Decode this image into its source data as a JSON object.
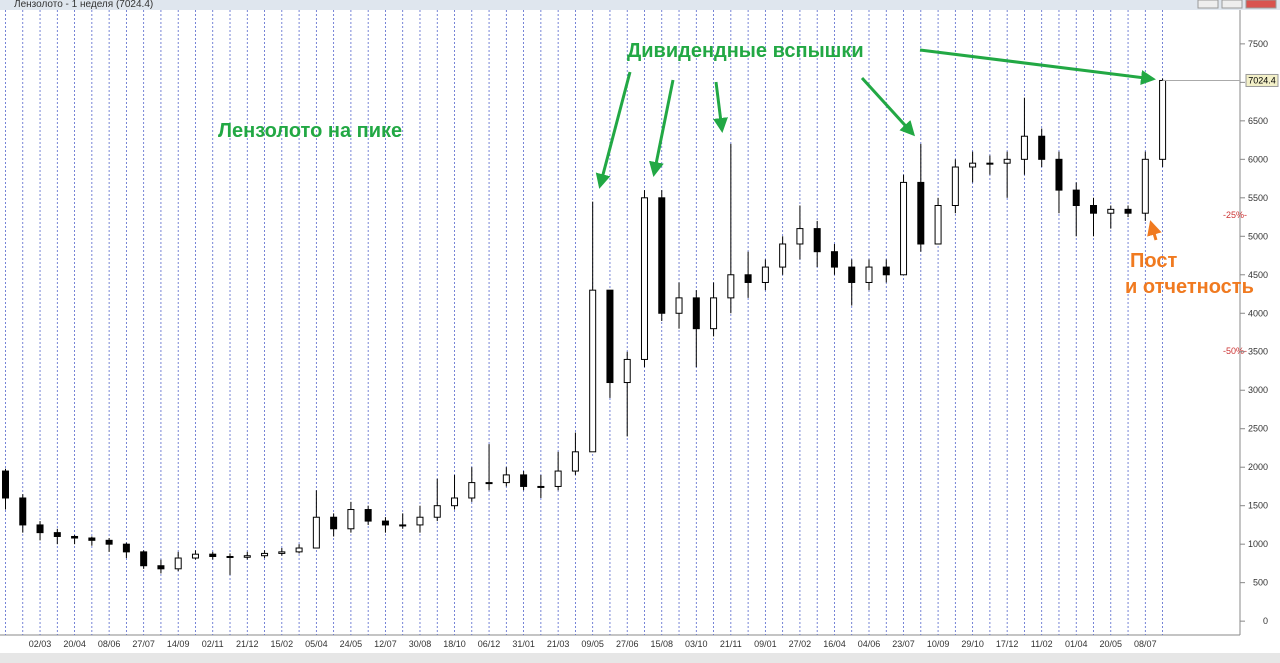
{
  "window_title": "Лензолото - 1 неделя (7024.4)",
  "chart_data": {
    "type": "candlestick",
    "categories": [
      null,
      null,
      "02/03",
      null,
      "20/04",
      null,
      "08/06",
      null,
      "27/07",
      null,
      "14/09",
      null,
      "02/11",
      null,
      "21/12",
      null,
      "15/02",
      null,
      "05/04",
      null,
      "24/05",
      null,
      "12/07",
      null,
      "30/08",
      null,
      "18/10",
      null,
      "06/12",
      null,
      "31/01",
      null,
      "21/03",
      null,
      "09/05",
      null,
      "27/06",
      null,
      "15/08",
      null,
      "03/10",
      null,
      "21/11",
      null,
      "09/01",
      null,
      "27/02",
      null,
      "16/04",
      null,
      "04/06",
      null,
      "23/07",
      null,
      "10/09",
      null,
      "29/10",
      null,
      "17/12",
      null,
      "11/02",
      null,
      "01/04",
      null,
      "20/05",
      null,
      "08/07",
      null
    ],
    "open": [
      1950,
      1600,
      1250,
      1150,
      1100,
      1080,
      1050,
      1000,
      900,
      720,
      680,
      820,
      870,
      840,
      830,
      850,
      880,
      900,
      950,
      1350,
      1200,
      1450,
      1300,
      1250,
      1250,
      1350,
      1500,
      1600,
      1800,
      1800,
      1900,
      1750,
      1750,
      1950,
      2200,
      4300,
      3100,
      3400,
      5500,
      4000,
      4200,
      3800,
      4200,
      4500,
      4400,
      4600,
      4900,
      5100,
      4800,
      4600,
      4400,
      4600,
      4500,
      5700,
      4900,
      5400,
      5900,
      5950,
      5950,
      6000,
      6300,
      6000,
      5600,
      5400,
      5300,
      5350,
      5300,
      6000
    ],
    "high": [
      1980,
      1650,
      1300,
      1200,
      1120,
      1100,
      1080,
      1020,
      920,
      800,
      900,
      920,
      900,
      880,
      900,
      920,
      950,
      1000,
      1700,
      1400,
      1550,
      1500,
      1350,
      1400,
      1500,
      1850,
      1900,
      2000,
      2300,
      2000,
      1950,
      1900,
      2200,
      2450,
      5450,
      4300,
      3500,
      5600,
      5600,
      4400,
      4300,
      4400,
      6200,
      4800,
      4700,
      5000,
      5400,
      5200,
      4900,
      4700,
      4700,
      4700,
      5800,
      6200,
      5500,
      6000,
      6100,
      6050,
      6100,
      6800,
      6400,
      6100,
      5700,
      5500,
      5400,
      5400,
      6100,
      7050
    ],
    "low": [
      1450,
      1150,
      1050,
      1000,
      1000,
      980,
      900,
      820,
      680,
      620,
      650,
      800,
      800,
      600,
      800,
      820,
      850,
      880,
      950,
      1100,
      1150,
      1250,
      1150,
      1200,
      1150,
      1300,
      1450,
      1550,
      1700,
      1750,
      1700,
      1600,
      1700,
      1900,
      2200,
      2900,
      2400,
      3300,
      3900,
      3800,
      3300,
      3700,
      4000,
      4200,
      4300,
      4500,
      4700,
      4600,
      4500,
      4100,
      4300,
      4400,
      4500,
      4800,
      4900,
      5300,
      5700,
      5800,
      5500,
      5800,
      5900,
      5300,
      5000,
      5000,
      5100,
      5250,
      5200,
      5900
    ],
    "close": [
      1600,
      1250,
      1150,
      1100,
      1080,
      1050,
      1000,
      900,
      720,
      680,
      820,
      870,
      840,
      830,
      850,
      880,
      900,
      950,
      1350,
      1200,
      1450,
      1300,
      1250,
      1250,
      1350,
      1500,
      1600,
      1800,
      1800,
      1900,
      1750,
      1750,
      1950,
      2200,
      4300,
      3100,
      3400,
      5500,
      4000,
      4200,
      3800,
      4200,
      4500,
      4400,
      4600,
      4900,
      5100,
      4800,
      4600,
      4400,
      4600,
      4500,
      5700,
      4900,
      5400,
      5900,
      5950,
      5950,
      6000,
      6300,
      6000,
      5600,
      5400,
      5300,
      5350,
      5300,
      6000,
      7024.4
    ],
    "ylim": [
      -180,
      7940
    ],
    "yticks": [
      0,
      500,
      1000,
      1500,
      2000,
      2500,
      3000,
      3500,
      4000,
      4500,
      5000,
      5500,
      6000,
      6500,
      7000,
      7500
    ],
    "annotations": {
      "peak": "Лензолото на пике",
      "dividends": "Дивидендные вспышки",
      "post_1": "Пост",
      "post_2": "и отчетность",
      "minus25": "-25%-",
      "minus50": "-50%-"
    }
  }
}
